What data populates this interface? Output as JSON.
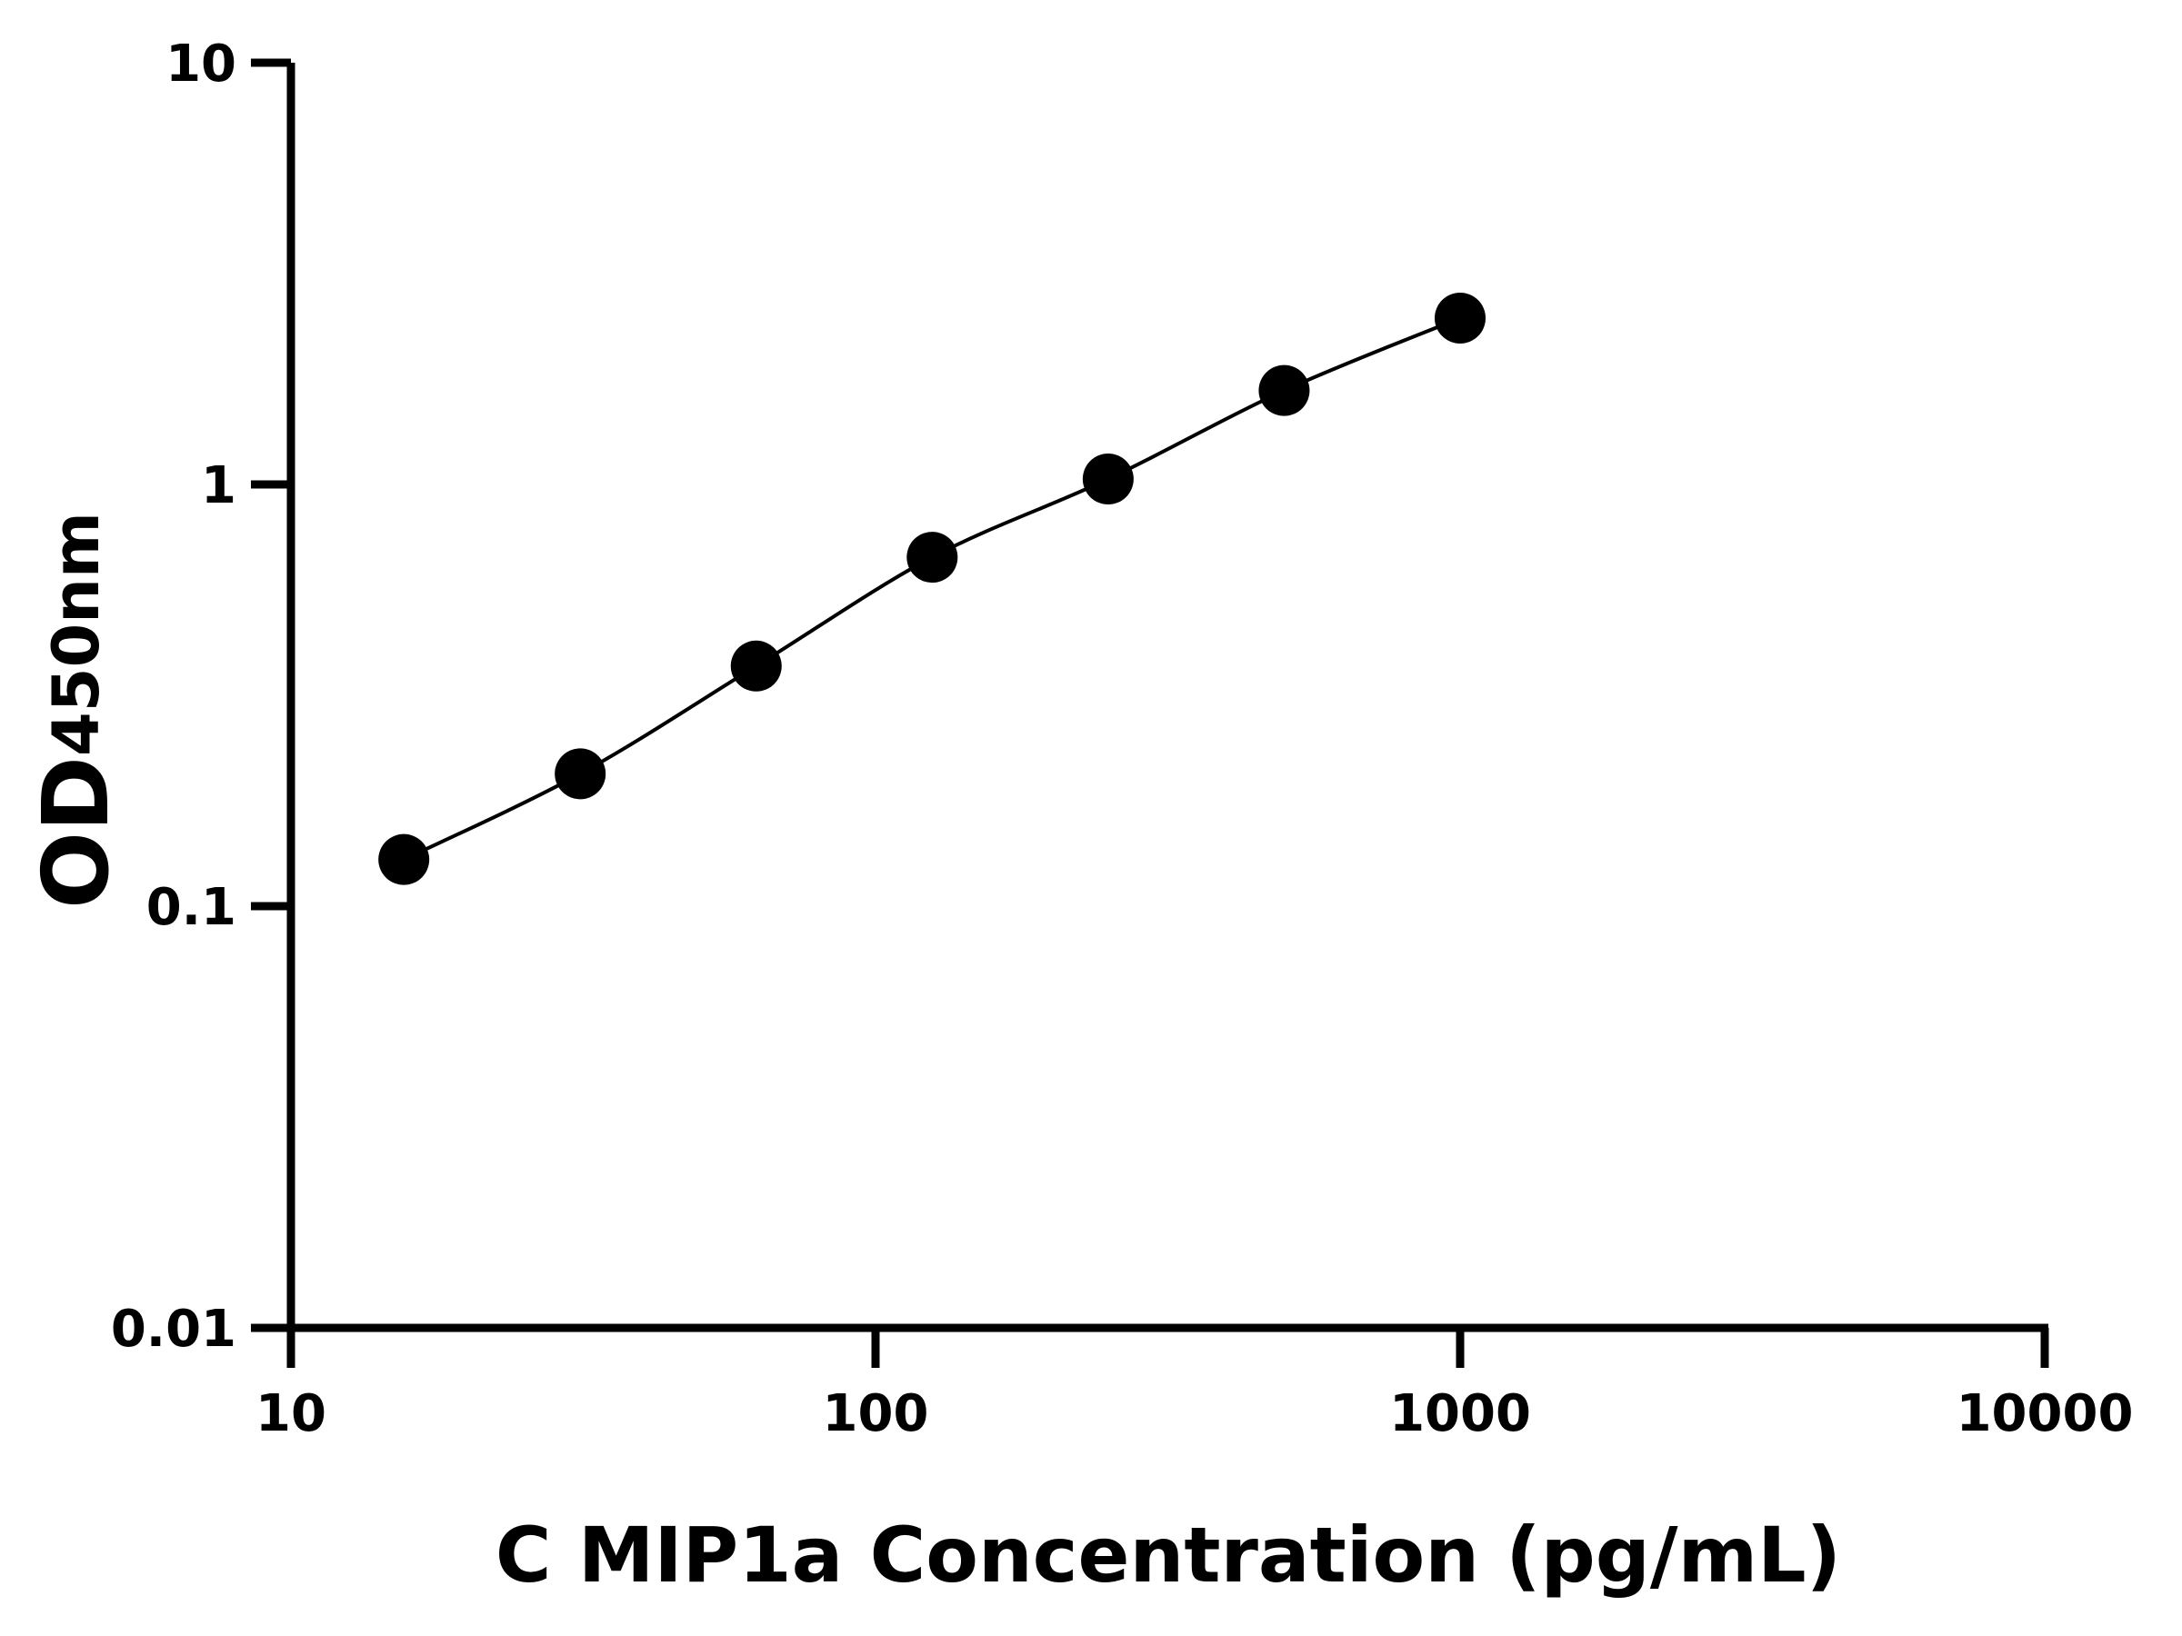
{
  "chart_data": {
    "type": "line",
    "title": "",
    "xlabel": "C MIP1a Concentration (pg/mL)",
    "ylabel": "OD",
    "ylabel_subscript": "450nm",
    "x_scale": "log",
    "y_scale": "log",
    "xlim": [
      10,
      10000
    ],
    "ylim": [
      0.01,
      10
    ],
    "x_ticks": [
      "10",
      "100",
      "1000",
      "10000"
    ],
    "y_ticks": [
      "0.01",
      "0.1",
      "1",
      "10"
    ],
    "grid": false,
    "series": [
      {
        "x": [
          15.6,
          31.25,
          62.5,
          125,
          250,
          500,
          1000
        ],
        "y": [
          0.129,
          0.206,
          0.371,
          0.672,
          1.03,
          1.67,
          2.48
        ],
        "marker": "circle",
        "line": "smooth fit",
        "color": "#000000"
      }
    ]
  }
}
